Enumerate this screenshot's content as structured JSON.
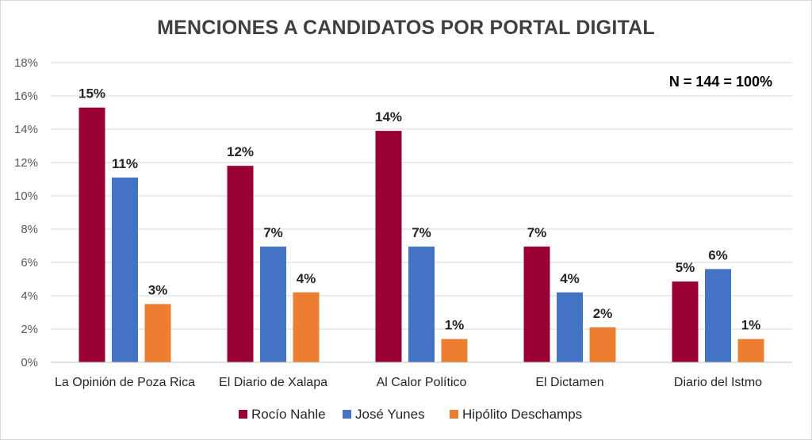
{
  "chart_data": {
    "type": "bar",
    "title": "MENCIONES A CANDIDATOS POR PORTAL DIGITAL",
    "annotation": "N = 144 = 100%",
    "categories": [
      "La Opinión de Poza Rica",
      "El Diario de Xalapa",
      "Al Calor Político",
      "El Dictamen",
      "Diario del Istmo"
    ],
    "series": [
      {
        "name": "Rocío Nahle",
        "color": "#990033",
        "values": [
          15.3,
          11.8,
          13.9,
          6.95,
          4.85
        ],
        "labels": [
          "15%",
          "12%",
          "14%",
          "7%",
          "5%"
        ]
      },
      {
        "name": "José Yunes",
        "color": "#4472C4",
        "values": [
          11.1,
          6.95,
          6.95,
          4.2,
          5.6
        ],
        "labels": [
          "11%",
          "7%",
          "7%",
          "4%",
          "6%"
        ]
      },
      {
        "name": "Hipólito Deschamps",
        "color": "#ED7D31",
        "values": [
          3.5,
          4.2,
          1.4,
          2.1,
          1.4
        ],
        "labels": [
          "3%",
          "4%",
          "1%",
          "2%",
          "1%"
        ]
      }
    ],
    "ylim": [
      0,
      18
    ],
    "yticks": [
      0,
      2,
      4,
      6,
      8,
      10,
      12,
      14,
      16,
      18
    ],
    "ytick_labels": [
      "0%",
      "2%",
      "4%",
      "6%",
      "8%",
      "10%",
      "12%",
      "14%",
      "16%",
      "18%"
    ],
    "grid": true,
    "legend_position": "bottom"
  }
}
